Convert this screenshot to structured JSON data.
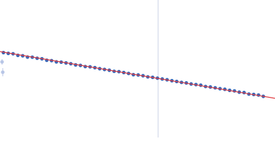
{
  "chart_data": {
    "type": "scatter",
    "xlim": [
      0,
      400
    ],
    "ylim": [
      0,
      200
    ],
    "vline": {
      "x": 230,
      "color": "#c8d0e4"
    },
    "series": [
      {
        "type": "line",
        "color": "#e0393e",
        "x": [
          0,
          400
        ],
        "values": [
          125,
          57
        ]
      },
      {
        "type": "scatter",
        "color": "#b8c6e6",
        "x": [
          3,
          4
        ],
        "values": [
          110,
          95
        ],
        "errors": [
          4,
          6
        ]
      },
      {
        "type": "scatter",
        "color": "#3a68b8",
        "x": [
          5,
          12,
          19,
          26,
          33,
          40,
          47,
          54,
          61,
          68,
          75,
          82,
          89,
          96,
          103,
          110,
          117,
          124,
          131,
          138,
          145,
          152,
          159,
          166,
          173,
          180,
          187,
          194,
          201,
          208,
          215,
          222,
          229,
          236,
          243,
          250,
          257,
          264,
          271,
          278,
          285,
          292,
          299,
          306,
          313,
          320,
          327,
          334,
          341,
          348,
          355,
          362,
          369,
          376,
          383
        ],
        "values": [
          123.5,
          122.4,
          121.8,
          119.5,
          118.9,
          117.0,
          116.8,
          115.3,
          114.5,
          112.4,
          111.8,
          110.0,
          109.6,
          108.5,
          107.3,
          105.6,
          104.9,
          103.2,
          102.8,
          101.6,
          100.1,
          99.0,
          97.9,
          96.3,
          95.8,
          94.5,
          93.2,
          91.4,
          91.0,
          89.9,
          88.2,
          87.5,
          86.3,
          85.1,
          84.0,
          82.6,
          81.5,
          80.2,
          79.4,
          77.9,
          77.0,
          76.1,
          74.2,
          73.5,
          72.3,
          71.0,
          70.1,
          68.6,
          67.8,
          66.0,
          65.4,
          63.2,
          62.6,
          61.8,
          59.9
        ]
      }
    ]
  }
}
